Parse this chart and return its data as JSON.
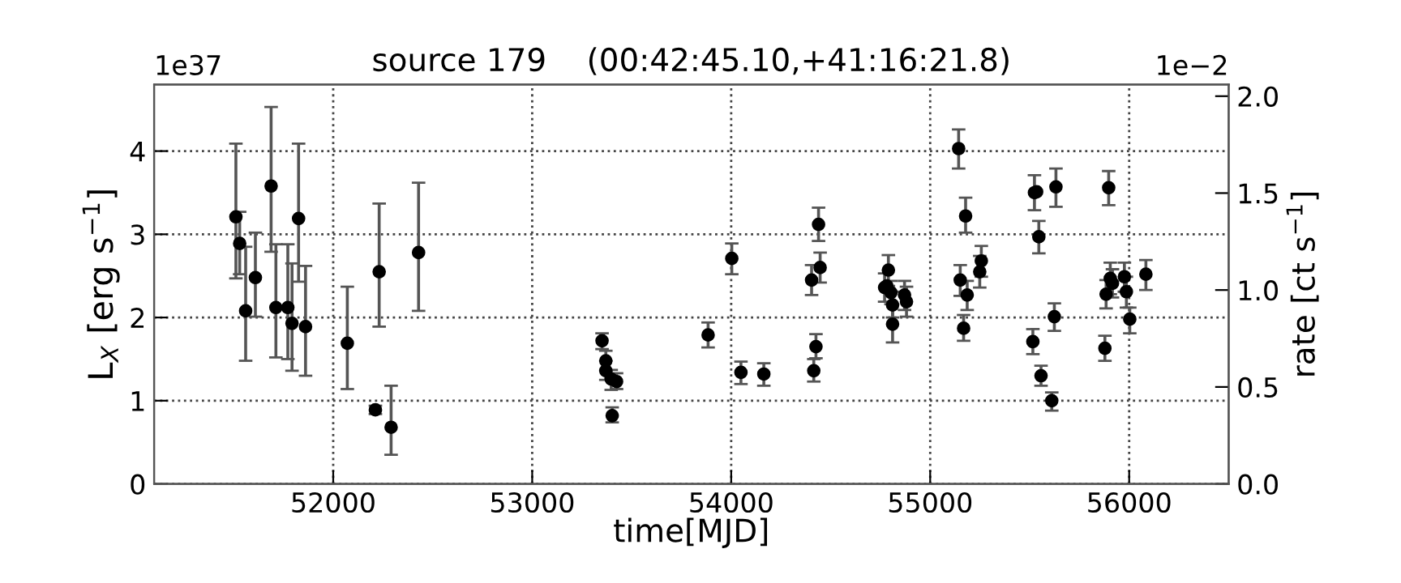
{
  "chart_data": {
    "type": "scatter",
    "title": "source 179    (00:42:45.10,+41:16:21.8)",
    "xlabel": "time[MJD]",
    "ylabel": "L$_{X}$ [erg s$^{−1}$]",
    "y2label": "rate [ct s$^{−1}$]",
    "annotations": [
      "1e37",
      "1e−2"
    ],
    "xlim": [
      51100,
      56500
    ],
    "xticks": [
      52000,
      53000,
      54000,
      55000,
      56000
    ],
    "ylim": [
      0,
      4.8
    ],
    "yticks": [
      0,
      1,
      2,
      3,
      4
    ],
    "y2lim": [
      0,
      2.06
    ],
    "y2ticks": [
      {
        "value": 0,
        "label": "0.0"
      },
      {
        "value": 0.5,
        "label": "0.5"
      },
      {
        "value": 1,
        "label": "1.0"
      },
      {
        "value": 1.5,
        "label": "1.5"
      },
      {
        "value": 2,
        "label": "2.0"
      }
    ],
    "grid": true,
    "marker": "circle",
    "series": [
      {
        "color": "#000000",
        "x": [
          51511,
          51530,
          51560,
          51609,
          51688,
          51712,
          51772,
          51793,
          51826,
          51861,
          52071,
          52212,
          52231,
          52291,
          52429,
          53351,
          53370,
          53370,
          53397,
          53424,
          53402,
          53884,
          54003,
          54049,
          54164,
          54404,
          54439,
          54447,
          54426,
          54415,
          54790,
          54771,
          54782,
          54803,
          54811,
          54811,
          54871,
          54881,
          55143,
          55178,
          55151,
          55186,
          55168,
          55249,
          55257,
          55524,
          55535,
          55546,
          55516,
          55557,
          55632,
          55624,
          55611,
          55897,
          55878,
          55884,
          55905,
          55916,
          55976,
          55986,
          56003,
          56084
        ],
        "values": [
          3.21,
          2.89,
          2.08,
          2.48,
          3.58,
          2.12,
          2.12,
          1.93,
          3.19,
          1.89,
          1.69,
          0.89,
          2.55,
          0.68,
          2.78,
          1.72,
          1.48,
          1.36,
          1.26,
          1.23,
          0.82,
          1.79,
          2.71,
          1.34,
          1.32,
          2.45,
          3.12,
          2.6,
          1.65,
          1.36,
          2.57,
          2.36,
          2.38,
          2.3,
          2.15,
          1.92,
          2.27,
          2.19,
          4.03,
          3.22,
          2.45,
          2.27,
          1.87,
          2.55,
          2.68,
          3.5,
          3.51,
          2.97,
          1.71,
          1.3,
          3.57,
          2.01,
          1.0,
          3.56,
          1.63,
          2.28,
          2.47,
          2.41,
          2.49,
          2.31,
          1.98,
          2.52
        ],
        "errors": [
          [
            2.47,
            4.09
          ],
          [
            2.52,
            3.27
          ],
          [
            1.48,
            2.85
          ],
          [
            2.01,
            3.02
          ],
          [
            2.79,
            4.53
          ],
          [
            1.52,
            2.88
          ],
          [
            1.5,
            2.88
          ],
          [
            1.36,
            2.65
          ],
          [
            2.43,
            4.09
          ],
          [
            1.3,
            2.62
          ],
          [
            1.14,
            2.37
          ],
          [
            0.84,
            0.94
          ],
          [
            1.89,
            3.37
          ],
          [
            0.35,
            1.18
          ],
          [
            2.08,
            3.62
          ],
          [
            1.62,
            1.81
          ],
          [
            1.48,
            1.6
          ],
          [
            1.25,
            1.36
          ],
          [
            1.13,
            1.37
          ],
          [
            1.14,
            1.33
          ],
          [
            0.74,
            0.92
          ],
          [
            1.64,
            1.94
          ],
          [
            2.52,
            2.89
          ],
          [
            1.2,
            1.47
          ],
          [
            1.18,
            1.45
          ],
          [
            2.27,
            2.63
          ],
          [
            2.92,
            3.32
          ],
          [
            2.42,
            2.78
          ],
          [
            1.51,
            1.8
          ],
          [
            1.23,
            1.5
          ],
          [
            2.38,
            2.75
          ],
          [
            2.19,
            2.53
          ],
          null,
          [
            2.16,
            2.44
          ],
          [
            2.0,
            2.31
          ],
          [
            1.7,
            2.16
          ],
          [
            2.09,
            2.44
          ],
          [
            2.01,
            2.37
          ],
          [
            3.79,
            4.26
          ],
          [
            3.02,
            3.44
          ],
          [
            2.26,
            2.63
          ],
          [
            2.09,
            2.44
          ],
          [
            1.72,
            2.03
          ],
          [
            2.36,
            2.74
          ],
          [
            2.49,
            2.86
          ],
          [
            3.29,
            3.71
          ],
          null,
          [
            2.77,
            3.16
          ],
          [
            1.56,
            1.86
          ],
          [
            1.18,
            1.42
          ],
          [
            3.33,
            3.79
          ],
          [
            1.84,
            2.17
          ],
          [
            0.88,
            1.1
          ],
          [
            3.35,
            3.76
          ],
          [
            1.48,
            1.78
          ],
          [
            2.11,
            2.45
          ],
          [
            2.28,
            2.66
          ],
          [
            2.24,
            2.58
          ],
          [
            2.31,
            2.66
          ],
          [
            2.12,
            2.49
          ],
          [
            1.81,
            2.12
          ],
          [
            2.33,
            2.69
          ]
        ]
      }
    ]
  }
}
